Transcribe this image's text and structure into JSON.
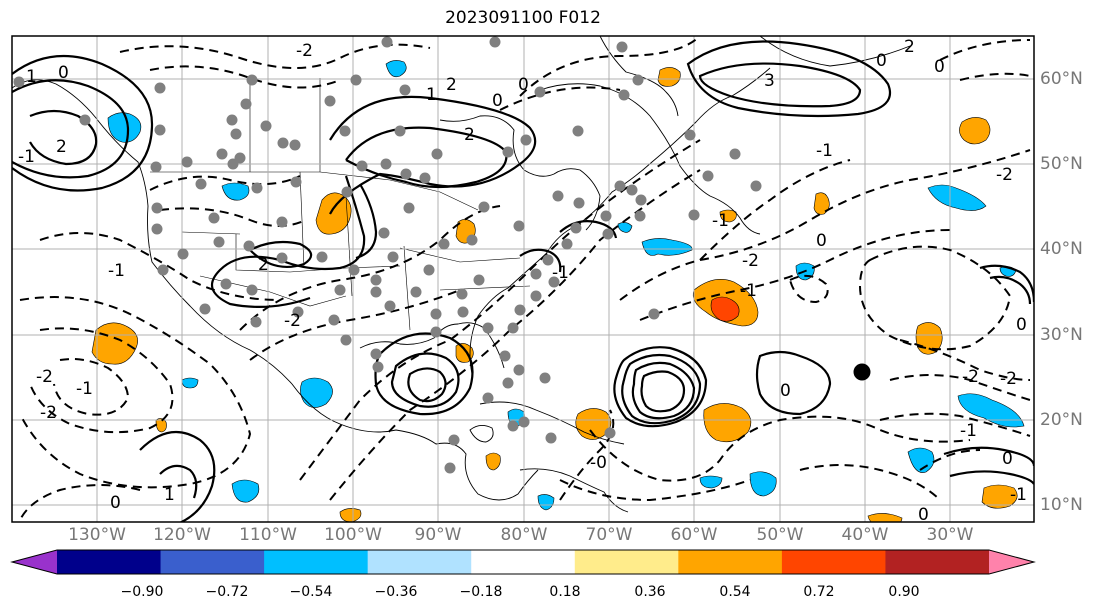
{
  "title": "2023091100 F012",
  "lon_labels": [
    "130°W",
    "120°W",
    "110°W",
    "100°W",
    "90°W",
    "80°W",
    "70°W",
    "60°W",
    "50°W",
    "40°W",
    "30°W"
  ],
  "lat_labels": [
    "10°N",
    "20°N",
    "30°N",
    "40°N",
    "50°N",
    "60°N"
  ],
  "colorbar": {
    "tick_labels": [
      "−0.90",
      "−0.72",
      "−0.54",
      "−0.36",
      "−0.18",
      "0.18",
      "0.36",
      "0.54",
      "0.72",
      "0.90"
    ],
    "colors": [
      "#9932cc",
      "#00008b",
      "#3a5fcd",
      "#00bfff",
      "#b0e2ff",
      "#ffffff",
      "#ffec8b",
      "#ffa500",
      "#ff4500",
      "#b22222",
      "#ff82ab"
    ]
  },
  "contour_labels": [
    "1",
    "2",
    "0",
    "2",
    "1",
    "2",
    "0",
    "3",
    "0",
    "2",
    "0",
    "0",
    "-1",
    "-2",
    "-1",
    "-2",
    "-1",
    "-2",
    "0",
    "-1",
    "-1",
    "-2",
    "-2",
    "0",
    "-0",
    "-1",
    "-2",
    "0",
    "-1",
    "0",
    "-2",
    "2",
    "-1",
    "-1",
    "0",
    "-2",
    "0",
    "1"
  ],
  "colors": {
    "frame": "#000000",
    "grid": "#b0b0b0",
    "dots": "#808080",
    "land": "#000000"
  }
}
